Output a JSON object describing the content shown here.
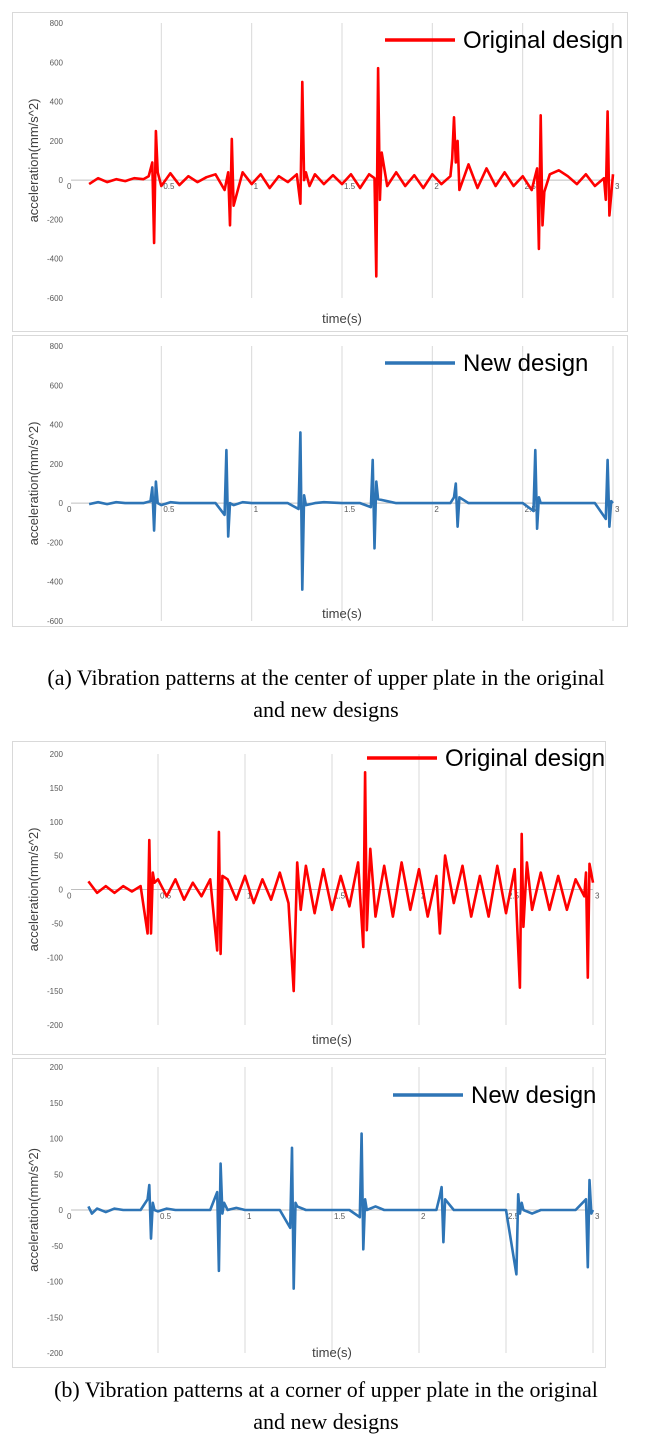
{
  "captions": {
    "a_line1": "(a) Vibration patterns at the center of upper plate in the original",
    "a_line2": "and new designs",
    "b_line1": "(b) Vibration patterns at a corner of upper plate in the original",
    "b_line2": "and new designs"
  },
  "colors": {
    "original": "#ff0000",
    "new": "#2e75b6",
    "grid": "#d9d9d9",
    "axis": "#bfbfbf"
  },
  "chart_data": [
    {
      "type": "line",
      "xlabel": "time(s)",
      "ylabel": "acceleration(mm/s^2)",
      "xlim": [
        0,
        3
      ],
      "ylim": [
        -600,
        800
      ],
      "xticks": [
        "0",
        "0.5",
        "1",
        "1.5",
        "2",
        "2.5",
        "3"
      ],
      "yticks": [
        "800",
        "600",
        "400",
        "200",
        "0",
        "-200",
        "-400",
        "-600"
      ],
      "grid": "vertical",
      "legend_position": "top-right",
      "series": [
        {
          "name": "Original design",
          "color": "#ff0000",
          "x": [
            0.1,
            0.15,
            0.2,
            0.25,
            0.3,
            0.35,
            0.4,
            0.43,
            0.45,
            0.46,
            0.47,
            0.48,
            0.5,
            0.55,
            0.6,
            0.65,
            0.7,
            0.75,
            0.8,
            0.85,
            0.87,
            0.88,
            0.89,
            0.9,
            0.95,
            1.0,
            1.05,
            1.1,
            1.15,
            1.2,
            1.25,
            1.27,
            1.28,
            1.29,
            1.3,
            1.32,
            1.35,
            1.4,
            1.45,
            1.5,
            1.55,
            1.6,
            1.65,
            1.68,
            1.69,
            1.7,
            1.71,
            1.72,
            1.75,
            1.8,
            1.85,
            1.9,
            1.95,
            2.0,
            2.05,
            2.1,
            2.11,
            2.12,
            2.13,
            2.14,
            2.15,
            2.2,
            2.25,
            2.3,
            2.35,
            2.4,
            2.45,
            2.5,
            2.55,
            2.58,
            2.59,
            2.6,
            2.61,
            2.62,
            2.65,
            2.7,
            2.75,
            2.8,
            2.85,
            2.9,
            2.95,
            2.96,
            2.97,
            2.98,
            3.0
          ],
          "values": [
            -20,
            10,
            -10,
            5,
            -5,
            10,
            5,
            20,
            90,
            -320,
            250,
            40,
            -30,
            35,
            -25,
            20,
            -10,
            15,
            30,
            -50,
            40,
            -230,
            210,
            -130,
            40,
            -20,
            30,
            -40,
            20,
            -10,
            30,
            -120,
            500,
            0,
            40,
            -30,
            30,
            -20,
            25,
            -20,
            30,
            -40,
            30,
            10,
            -490,
            570,
            -100,
            140,
            -30,
            40,
            -30,
            25,
            -40,
            30,
            -20,
            20,
            110,
            320,
            90,
            200,
            -50,
            80,
            -40,
            60,
            -30,
            40,
            -30,
            20,
            -50,
            60,
            -350,
            330,
            -230,
            -60,
            30,
            50,
            20,
            -20,
            30,
            -30,
            10,
            -100,
            350,
            -180,
            30
          ]
        }
      ]
    },
    {
      "type": "line",
      "xlabel": "time(s)",
      "ylabel": "acceleration(mm/s^2)",
      "xlim": [
        0,
        3
      ],
      "ylim": [
        -600,
        800
      ],
      "xticks": [
        "0",
        "0.5",
        "1",
        "1.5",
        "2",
        "2.5",
        "3"
      ],
      "yticks": [
        "800",
        "600",
        "400",
        "200",
        "0",
        "-200",
        "-400",
        "-600"
      ],
      "grid": "vertical",
      "legend_position": "top-right",
      "series": [
        {
          "name": "New design",
          "color": "#2e75b6",
          "x": [
            0.1,
            0.15,
            0.2,
            0.25,
            0.3,
            0.35,
            0.4,
            0.44,
            0.45,
            0.46,
            0.47,
            0.48,
            0.5,
            0.55,
            0.6,
            0.7,
            0.8,
            0.85,
            0.86,
            0.87,
            0.88,
            0.9,
            0.95,
            1.0,
            1.1,
            1.2,
            1.26,
            1.27,
            1.28,
            1.29,
            1.3,
            1.35,
            1.4,
            1.5,
            1.6,
            1.66,
            1.67,
            1.68,
            1.69,
            1.7,
            1.75,
            1.8,
            1.9,
            2.0,
            2.1,
            2.12,
            2.13,
            2.14,
            2.15,
            2.2,
            2.3,
            2.4,
            2.5,
            2.56,
            2.57,
            2.58,
            2.59,
            2.6,
            2.7,
            2.8,
            2.9,
            2.96,
            2.97,
            2.98,
            2.99,
            3.0
          ],
          "values": [
            -5,
            5,
            -5,
            5,
            0,
            0,
            0,
            10,
            80,
            -140,
            110,
            0,
            -10,
            5,
            0,
            0,
            0,
            -60,
            270,
            -170,
            0,
            -10,
            5,
            0,
            0,
            0,
            -30,
            360,
            -440,
            40,
            -10,
            0,
            5,
            0,
            0,
            -20,
            220,
            -230,
            110,
            20,
            10,
            0,
            0,
            0,
            0,
            30,
            100,
            -120,
            30,
            0,
            0,
            0,
            0,
            -40,
            270,
            -130,
            30,
            0,
            0,
            0,
            0,
            -80,
            220,
            -120,
            10,
            0
          ]
        }
      ]
    },
    {
      "type": "line",
      "xlabel": "time(s)",
      "ylabel": "acceleration(mm/s^2)",
      "xlim": [
        0,
        3
      ],
      "ylim": [
        -200,
        200
      ],
      "xticks": [
        "0",
        "0.5",
        "1",
        "1.5",
        "2",
        "2.5",
        "3"
      ],
      "yticks": [
        "200",
        "150",
        "100",
        "50",
        "0",
        "-50",
        "-100",
        "-150",
        "-200"
      ],
      "grid": "vertical",
      "legend_position": "top-right",
      "series": [
        {
          "name": "Original design",
          "color": "#ff0000",
          "x": [
            0.1,
            0.15,
            0.2,
            0.25,
            0.3,
            0.35,
            0.4,
            0.44,
            0.45,
            0.46,
            0.47,
            0.48,
            0.5,
            0.55,
            0.6,
            0.65,
            0.7,
            0.75,
            0.8,
            0.84,
            0.85,
            0.86,
            0.87,
            0.9,
            0.95,
            1.0,
            1.05,
            1.1,
            1.15,
            1.2,
            1.25,
            1.28,
            1.3,
            1.32,
            1.35,
            1.4,
            1.45,
            1.5,
            1.55,
            1.6,
            1.65,
            1.68,
            1.69,
            1.7,
            1.72,
            1.75,
            1.8,
            1.85,
            1.9,
            1.95,
            2.0,
            2.05,
            2.1,
            2.12,
            2.15,
            2.2,
            2.25,
            2.3,
            2.35,
            2.4,
            2.45,
            2.5,
            2.55,
            2.58,
            2.59,
            2.6,
            2.62,
            2.65,
            2.7,
            2.75,
            2.8,
            2.85,
            2.9,
            2.95,
            2.96,
            2.97,
            2.98,
            3.0
          ],
          "values": [
            12,
            -5,
            5,
            -5,
            5,
            -3,
            5,
            -65,
            73,
            -65,
            25,
            10,
            15,
            -10,
            15,
            -15,
            10,
            -10,
            15,
            -90,
            85,
            -95,
            20,
            15,
            -15,
            20,
            -20,
            15,
            -15,
            25,
            -20,
            -150,
            40,
            -30,
            35,
            -35,
            30,
            -30,
            20,
            -25,
            40,
            -85,
            173,
            -60,
            60,
            -40,
            35,
            -40,
            40,
            -30,
            30,
            -40,
            20,
            -65,
            50,
            -20,
            35,
            -40,
            20,
            -40,
            35,
            -35,
            30,
            -145,
            82,
            -55,
            40,
            -30,
            25,
            -30,
            20,
            -30,
            15,
            -10,
            25,
            -130,
            38,
            10
          ]
        }
      ]
    },
    {
      "type": "line",
      "xlabel": "time(s)",
      "ylabel": "acceleration(mm/s^2)",
      "xlim": [
        0,
        3
      ],
      "ylim": [
        -200,
        200
      ],
      "xticks": [
        "0",
        "0.5",
        "1",
        "1.5",
        "2",
        "2.5",
        "3"
      ],
      "yticks": [
        "200",
        "150",
        "100",
        "50",
        "0",
        "-50",
        "-100",
        "-150",
        "-200"
      ],
      "grid": "vertical",
      "legend_position": "top-right",
      "series": [
        {
          "name": "New design",
          "color": "#2e75b6",
          "x": [
            0.1,
            0.12,
            0.15,
            0.2,
            0.25,
            0.3,
            0.35,
            0.4,
            0.44,
            0.45,
            0.46,
            0.47,
            0.48,
            0.5,
            0.55,
            0.6,
            0.7,
            0.8,
            0.84,
            0.85,
            0.86,
            0.87,
            0.88,
            0.9,
            0.95,
            1.0,
            1.1,
            1.2,
            1.26,
            1.27,
            1.28,
            1.29,
            1.3,
            1.35,
            1.4,
            1.5,
            1.6,
            1.66,
            1.67,
            1.68,
            1.69,
            1.7,
            1.75,
            1.8,
            1.9,
            2.0,
            2.1,
            2.12,
            2.13,
            2.14,
            2.15,
            2.2,
            2.3,
            2.4,
            2.5,
            2.56,
            2.57,
            2.58,
            2.59,
            2.6,
            2.65,
            2.7,
            2.8,
            2.9,
            2.96,
            2.97,
            2.98,
            2.99,
            3.0
          ],
          "values": [
            5,
            -5,
            2,
            -3,
            2,
            0,
            0,
            0,
            15,
            35,
            -40,
            10,
            0,
            -2,
            2,
            0,
            0,
            0,
            25,
            -85,
            65,
            -5,
            10,
            0,
            3,
            0,
            0,
            0,
            -25,
            87,
            -110,
            10,
            5,
            0,
            0,
            0,
            0,
            -10,
            107,
            -55,
            15,
            0,
            5,
            0,
            0,
            0,
            0,
            20,
            32,
            -45,
            15,
            0,
            0,
            0,
            0,
            -90,
            22,
            -5,
            10,
            0,
            -5,
            0,
            0,
            0,
            15,
            -80,
            42,
            -5,
            0
          ]
        }
      ]
    }
  ]
}
